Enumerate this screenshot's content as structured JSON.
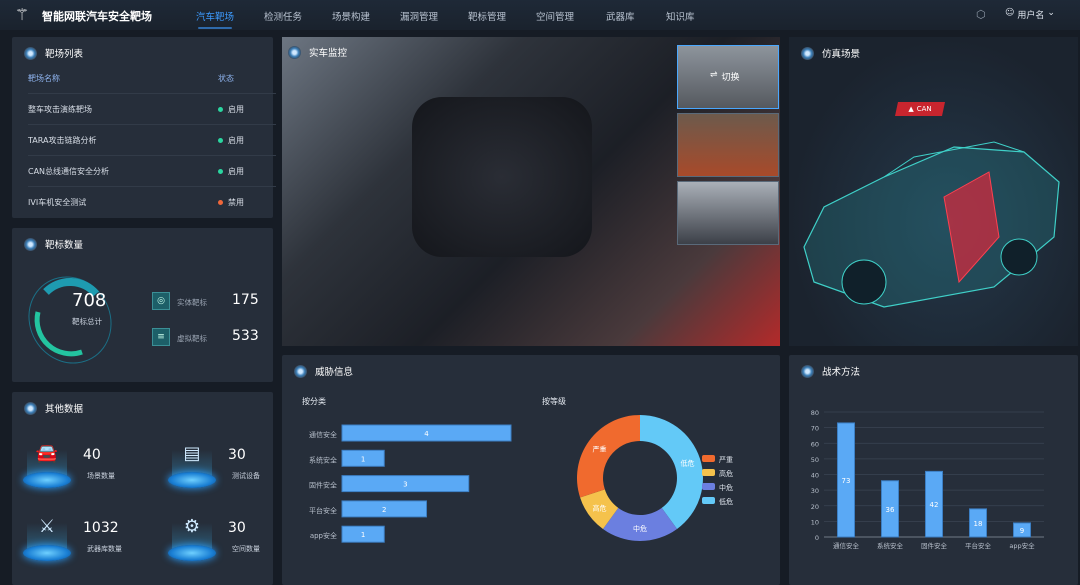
{
  "header": {
    "title": "智能网联汽车安全靶场",
    "nav": [
      "汽车靶场",
      "检测任务",
      "场景构建",
      "漏洞管理",
      "靶标管理",
      "空间管理",
      "武器库",
      "知识库"
    ],
    "active": "汽车靶场",
    "user": "用户名"
  },
  "range_list": {
    "title": "靶场列表",
    "col_name": "靶场名称",
    "col_status": "状态",
    "rows": [
      {
        "name": "整车攻击演练靶场",
        "status": "启用"
      },
      {
        "name": "TARA攻击链路分析",
        "status": "启用"
      },
      {
        "name": "CAN总线通信安全分析",
        "status": "启用"
      },
      {
        "name": "IVI车机安全测试",
        "status": "禁用"
      }
    ]
  },
  "target_count": {
    "title": "靶标数量",
    "total": "708",
    "total_label": "靶标总计",
    "physical_label": "实体靶标",
    "physical": "175",
    "virtual_label": "虚拟靶标",
    "virtual": "533"
  },
  "other_data": {
    "title": "其他数据",
    "items": [
      {
        "value": "40",
        "label": "场景数量",
        "icon": "car-icon"
      },
      {
        "value": "30",
        "label": "测试设备",
        "icon": "device-icon"
      },
      {
        "value": "1032",
        "label": "武器库数量",
        "icon": "swords-icon"
      },
      {
        "value": "30",
        "label": "空间数量",
        "icon": "gear-icon"
      }
    ]
  },
  "camera": {
    "title": "实车监控",
    "switch_label": "切换"
  },
  "sim": {
    "title": "仿真场景",
    "badge": "CAN"
  },
  "colors": {
    "accent": "#3d9bff",
    "enabled": "#2bd6a0",
    "disabled": "#f0673a",
    "bar": "#5aa9f5"
  },
  "threat": {
    "title": "威胁信息",
    "by_category": "按分类",
    "by_level": "按等级"
  },
  "chart_data": [
    {
      "type": "bar",
      "orientation": "horizontal",
      "categories": [
        "通信安全",
        "系统安全",
        "固件安全",
        "平台安全",
        "app安全"
      ],
      "values": [
        4,
        1,
        3,
        2,
        1
      ],
      "data_labels": true
    },
    {
      "type": "pie",
      "donut": true,
      "categories": [
        "严重",
        "高危",
        "中危",
        "低危"
      ],
      "values": [
        3,
        1,
        2,
        4
      ],
      "colors": [
        "#f06a2e",
        "#f5c24c",
        "#6b7fe0",
        "#63c9f7"
      ],
      "legend": "right"
    },
    {
      "type": "bar",
      "title": "战术方法",
      "categories": [
        "通信安全",
        "系统安全",
        "固件安全",
        "平台安全",
        "app安全"
      ],
      "values": [
        73,
        36,
        42,
        18,
        9
      ],
      "ylim": [
        0,
        80
      ],
      "yticks": [
        0,
        10,
        20,
        30,
        40,
        50,
        60,
        70,
        80
      ],
      "grid": true,
      "data_labels": true
    }
  ]
}
